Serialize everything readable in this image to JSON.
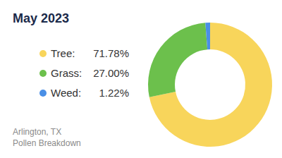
{
  "chart_data": {
    "type": "pie",
    "title": "May 2023",
    "categories": [
      "Tree:",
      "Grass:",
      "Weed:"
    ],
    "values": [
      71.78,
      27.0,
      1.22
    ],
    "value_labels": [
      "71.78%",
      "27.00%",
      "1.22%"
    ],
    "colors": [
      "#f8d55b",
      "#6cc04c",
      "#4a8fe6"
    ],
    "legend": "left",
    "annotations": [
      "Arlington, TX",
      "Pollen Breakdown"
    ]
  }
}
